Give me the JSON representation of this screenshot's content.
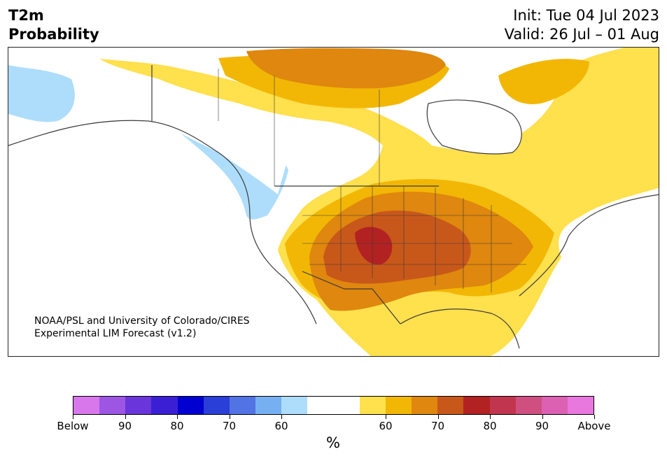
{
  "title": {
    "left_line1": "T2m",
    "left_line2": "Probability",
    "init": "Init: Tue 04 Jul 2023",
    "valid": "Valid: 26 Jul – 01 Aug"
  },
  "credit": {
    "line1": "NOAA/PSL and University of Colorado/CIRES",
    "line2": "Experimental LIM Forecast (v1.2)"
  },
  "colorbar": {
    "colors": [
      "#d877eb",
      "#9d55e4",
      "#6a35da",
      "#3a1fd4",
      "#0000d1",
      "#2a3ed8",
      "#5273e4",
      "#77b0f2",
      "#aeddfb",
      "#ffffff",
      "#ffffff",
      "#ffe04d",
      "#f2b705",
      "#df870e",
      "#c8581a",
      "#b22222",
      "#c2354f",
      "#cf4f80",
      "#dc61b3",
      "#e877de"
    ],
    "ticks": [
      "Below",
      "90",
      "80",
      "70",
      "60",
      "60",
      "70",
      "80",
      "90",
      "Above"
    ],
    "units": "%"
  },
  "map": {
    "ocean": "#ffffff",
    "land_neutral": "#ffffff",
    "border_color": "#3a3a3a",
    "legend_colors": {
      "below_60": "#aeddfb",
      "above_60": "#ffe04d",
      "above_65": "#f2b705",
      "above_70": "#df870e",
      "above_75": "#c8581a",
      "above_80": "#b22222"
    }
  }
}
